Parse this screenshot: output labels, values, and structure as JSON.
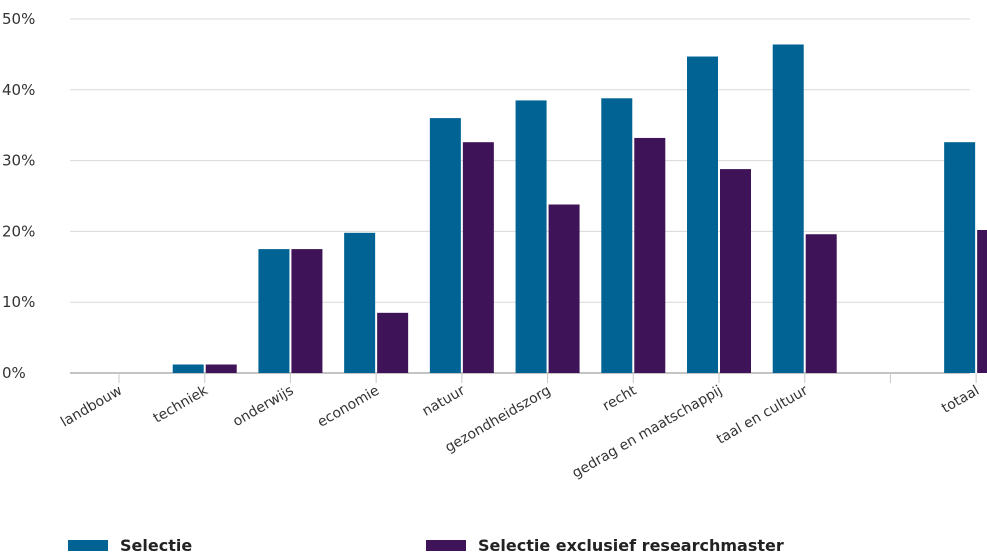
{
  "chart_data": {
    "type": "bar",
    "categories": [
      "landbouw",
      "techniek",
      "onderwijs",
      "economie",
      "natuur",
      "gezondheidszorg",
      "recht",
      "gedrag en maatschappij",
      "taal en cultuur",
      "",
      "totaal"
    ],
    "series": [
      {
        "name": "Selectie",
        "color": "#006394",
        "values": [
          0,
          1.2,
          17.5,
          19.8,
          36.0,
          38.5,
          38.8,
          44.7,
          46.4,
          null,
          32.6
        ]
      },
      {
        "name": "Selectie exclusief researchmaster",
        "color": "#3f1358",
        "values": [
          0,
          1.2,
          17.5,
          8.5,
          32.6,
          23.8,
          33.2,
          28.8,
          19.6,
          null,
          20.2
        ]
      }
    ],
    "yticks": [
      "0%",
      "10%",
      "20%",
      "30%",
      "40%",
      "50%"
    ],
    "ylim": [
      0,
      50
    ],
    "grid": true,
    "legend_position": "bottom"
  }
}
